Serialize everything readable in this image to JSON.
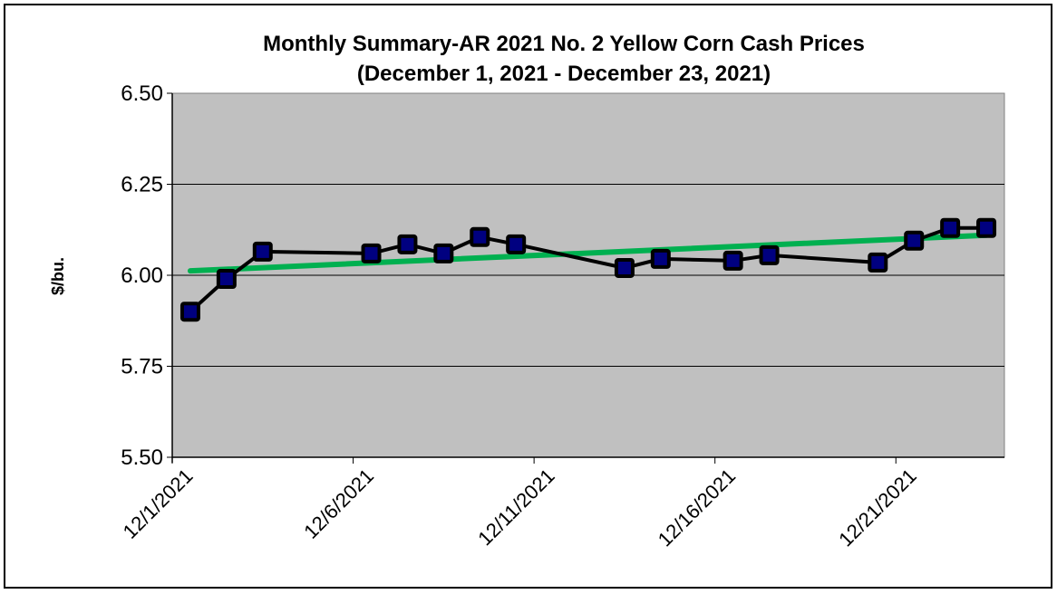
{
  "chart_data": {
    "type": "line",
    "title": "Monthly Summary-AR 2021 No. 2 Yellow Corn Cash Prices",
    "subtitle": "(December 1, 2021 - December 23, 2021)",
    "xlabel": "",
    "ylabel": "$/bu.",
    "ylim": [
      5.5,
      6.5
    ],
    "yticks": [
      "6.50",
      "6.25",
      "6.00",
      "5.75",
      "5.50"
    ],
    "xlim": [
      "12/1/2021",
      "12/24/2021"
    ],
    "xticks": [
      "12/1/2021",
      "12/6/2021",
      "12/11/2021",
      "12/16/2021",
      "12/21/2021"
    ],
    "grid": "horizontal",
    "plot_background": "#c0c0c0",
    "series": [
      {
        "line_color": "#000000",
        "marker_color": "#000080",
        "x": [
          "12/1/2021",
          "12/2/2021",
          "12/3/2021",
          "12/6/2021",
          "12/7/2021",
          "12/8/2021",
          "12/9/2021",
          "12/10/2021",
          "12/13/2021",
          "12/14/2021",
          "12/16/2021",
          "12/17/2021",
          "12/20/2021",
          "12/21/2021",
          "12/22/2021",
          "12/23/2021"
        ],
        "y": [
          5.9,
          5.99,
          6.065,
          6.06,
          6.085,
          6.06,
          6.105,
          6.085,
          6.02,
          6.045,
          6.04,
          6.055,
          6.035,
          6.095,
          6.13,
          6.13
        ]
      }
    ],
    "trendline": {
      "color": "#00b050",
      "x": [
        "12/1/2021",
        "12/23/2021"
      ],
      "y": [
        6.012,
        6.11
      ]
    }
  }
}
